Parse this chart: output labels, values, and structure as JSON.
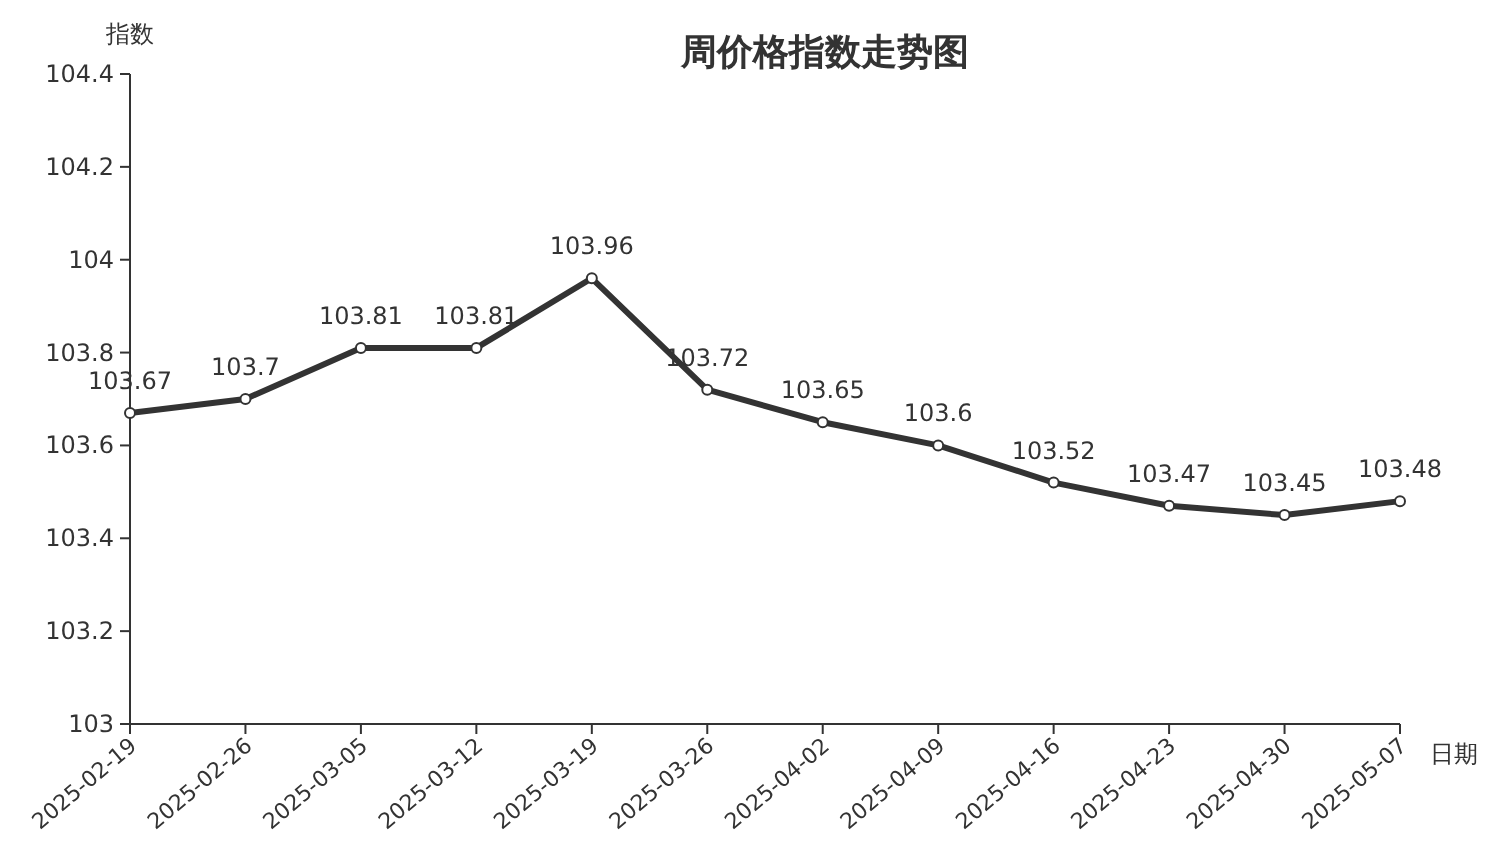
{
  "chart_data": {
    "type": "line",
    "title": "周价格指数走势图",
    "xlabel": "日期",
    "ylabel": "指数",
    "categories": [
      "2025-02-19",
      "2025-02-26",
      "2025-03-05",
      "2025-03-12",
      "2025-03-19",
      "2025-03-26",
      "2025-04-02",
      "2025-04-09",
      "2025-04-16",
      "2025-04-23",
      "2025-04-30",
      "2025-05-07"
    ],
    "series": [
      {
        "color": "#333333",
        "values": [
          103.67,
          103.7,
          103.81,
          103.81,
          103.96,
          103.72,
          103.65,
          103.6,
          103.52,
          103.47,
          103.45,
          103.48
        ]
      }
    ],
    "ylim": [
      103,
      104.4
    ],
    "yticks": [
      103,
      103.2,
      103.4,
      103.6,
      103.8,
      104,
      104.2,
      104.4
    ],
    "data_labels": true,
    "marker": "circle",
    "line_style": "solid"
  }
}
